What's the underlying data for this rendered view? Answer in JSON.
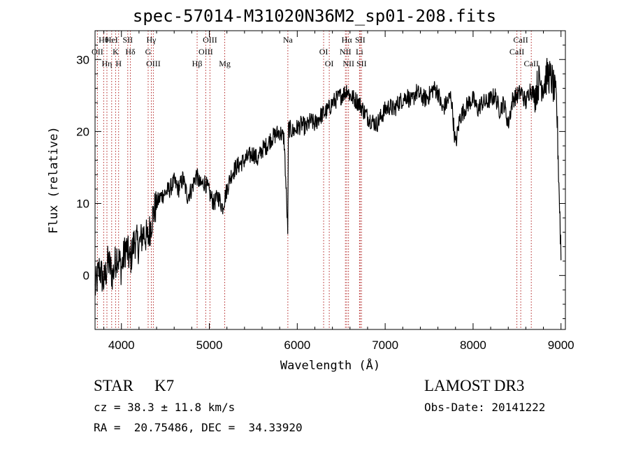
{
  "chart_data": {
    "type": "line",
    "title": "spec-57014-M31020N36M2_sp01-208.fits",
    "xlabel": "Wavelength (Å)",
    "ylabel": "Flux (relative)",
    "xlim": [
      3700,
      9050
    ],
    "ylim": [
      -7.5,
      34
    ],
    "x_ticks": [
      4000,
      5000,
      6000,
      7000,
      8000,
      9000
    ],
    "y_ticks": [
      0,
      10,
      20,
      30
    ],
    "x_tick_labels": [
      "4000",
      "5000",
      "6000",
      "7000",
      "8000",
      "9000"
    ],
    "y_tick_labels": [
      "0",
      "10",
      "20",
      "30"
    ],
    "line_color": "#000000",
    "marker_color": "#b22222",
    "spectrum": {
      "x": [
        3700,
        3750,
        3800,
        3850,
        3900,
        3950,
        4000,
        4050,
        4100,
        4150,
        4200,
        4250,
        4300,
        4350,
        4400,
        4450,
        4500,
        4550,
        4600,
        4650,
        4700,
        4750,
        4800,
        4850,
        4900,
        4950,
        5000,
        5050,
        5100,
        5150,
        5200,
        5250,
        5300,
        5350,
        5400,
        5450,
        5500,
        5550,
        5600,
        5650,
        5700,
        5750,
        5800,
        5850,
        5893,
        5900,
        5950,
        6000,
        6050,
        6100,
        6150,
        6200,
        6250,
        6300,
        6350,
        6400,
        6450,
        6500,
        6550,
        6563,
        6600,
        6650,
        6700,
        6750,
        6800,
        6850,
        6900,
        6950,
        7000,
        7050,
        7100,
        7150,
        7200,
        7250,
        7300,
        7350,
        7400,
        7450,
        7500,
        7550,
        7600,
        7650,
        7700,
        7750,
        7800,
        7850,
        7900,
        7950,
        8000,
        8050,
        8100,
        8150,
        8200,
        8250,
        8300,
        8350,
        8400,
        8450,
        8500,
        8550,
        8600,
        8650,
        8700,
        8750,
        8800,
        8850,
        8900,
        8950,
        9000
      ],
      "y": [
        -2,
        1,
        -1,
        2,
        0,
        3,
        1,
        4,
        2,
        5,
        4,
        6,
        5,
        8,
        10,
        11,
        11.5,
        12,
        13,
        12,
        13.5,
        11,
        12,
        14,
        12.5,
        13,
        11.5,
        10,
        11,
        9.5,
        12,
        14,
        15,
        15.5,
        16,
        16.5,
        17,
        16,
        17.5,
        18,
        19,
        19.5,
        20,
        19,
        6,
        20.5,
        20,
        20.5,
        21,
        20.5,
        21.5,
        21,
        22,
        22.5,
        23,
        24,
        24.5,
        25,
        25.5,
        26,
        25,
        24.5,
        24,
        23,
        22,
        21.5,
        21,
        22,
        23,
        23.5,
        23,
        24,
        24.5,
        25,
        24,
        25.5,
        25,
        24.5,
        25,
        26,
        25.5,
        23,
        24,
        25,
        18,
        22,
        23,
        24,
        24.5,
        23,
        24,
        24,
        24.5,
        25,
        23,
        24,
        21,
        24.5,
        25,
        25.5,
        24,
        26,
        25,
        27,
        26.5,
        28,
        27,
        24,
        3
      ]
    },
    "line_markers": [
      {
        "label": "Hθ",
        "x": 3798
      },
      {
        "label": "OII",
        "x": 3727
      },
      {
        "label": "Hη",
        "x": 3835
      },
      {
        "label": "HeI",
        "x": 3889
      },
      {
        "label": "K",
        "x": 3934
      },
      {
        "label": "H",
        "x": 3968
      },
      {
        "label": "SII",
        "x": 4072
      },
      {
        "label": "Hδ",
        "x": 4102
      },
      {
        "label": "OIII",
        "x": 4363
      },
      {
        "label": "Hγ",
        "x": 4340
      },
      {
        "label": "G",
        "x": 4304
      },
      {
        "label": "Hβ",
        "x": 4861
      },
      {
        "label": "OIII",
        "x": 5007
      },
      {
        "label": "OIII",
        "x": 4959
      },
      {
        "label": "Mg",
        "x": 5175
      },
      {
        "label": "Na",
        "x": 5893
      },
      {
        "label": "OI",
        "x": 6300
      },
      {
        "label": "OI",
        "x": 6364
      },
      {
        "label": "Hα",
        "x": 6563
      },
      {
        "label": "NII",
        "x": 6548
      },
      {
        "label": "NII",
        "x": 6583
      },
      {
        "label": "SII",
        "x": 6716
      },
      {
        "label": "Li",
        "x": 6708
      },
      {
        "label": "SII",
        "x": 6731
      },
      {
        "label": "CaII",
        "x": 8542
      },
      {
        "label": "CaII",
        "x": 8498
      },
      {
        "label": "CaII",
        "x": 8662
      }
    ]
  },
  "footer": {
    "class": "STAR",
    "subclass": "K7",
    "survey": "LAMOST DR3",
    "cz": "cz = 38.3 ± 11.8 km/s",
    "obs_label": "Obs-Date",
    "obs_date": "20141222",
    "coords": "RA =  20.75486, DEC =  34.33920"
  }
}
